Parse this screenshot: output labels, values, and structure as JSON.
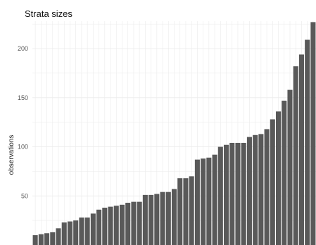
{
  "chart_data": {
    "type": "bar",
    "title": "Strata sizes",
    "xlabel": "",
    "ylabel": "observations",
    "ylim": [
      0,
      228
    ],
    "yticks": [
      50,
      100,
      150,
      200
    ],
    "grid": true,
    "legend": "none",
    "bar_color": "#595959",
    "grid_color": "#ebebeb",
    "values": [
      10,
      11,
      12,
      13,
      17,
      23,
      24,
      25,
      28,
      28,
      32,
      36,
      38,
      39,
      40,
      41,
      43,
      44,
      44,
      51,
      51,
      52,
      54,
      54,
      57,
      68,
      68,
      70,
      87,
      88,
      89,
      92,
      100,
      102,
      104,
      104,
      104,
      110,
      112,
      113,
      118,
      128,
      136,
      147,
      158,
      182,
      194,
      209,
      227
    ]
  }
}
